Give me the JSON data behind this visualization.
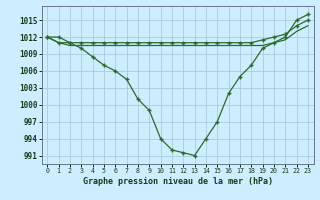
{
  "title": "Graphe pression niveau de la mer (hPa)",
  "background_color": "#cceeff",
  "grid_color": "#aaccdd",
  "line_color": "#2d6b2d",
  "x_values": [
    0,
    1,
    2,
    3,
    4,
    5,
    6,
    7,
    8,
    9,
    10,
    11,
    12,
    13,
    14,
    15,
    16,
    17,
    18,
    19,
    20,
    21,
    22,
    23
  ],
  "main_line": [
    1012,
    1012,
    1011,
    1010,
    1008.5,
    1007,
    1006,
    1004.5,
    1001,
    999,
    994,
    992,
    991.5,
    991,
    994,
    997,
    1002,
    1005,
    1007,
    1010,
    1011,
    1012,
    1015,
    1016
  ],
  "upper_line": [
    1012,
    1011,
    1011,
    1011,
    1011,
    1011,
    1011,
    1011,
    1011,
    1011,
    1011,
    1011,
    1011,
    1011,
    1011,
    1011,
    1011,
    1011,
    1011,
    1011.5,
    1012,
    1012.5,
    1014,
    1015
  ],
  "mid_line": [
    1012,
    1011,
    1010.5,
    1010.5,
    1010.5,
    1010.5,
    1010.5,
    1010.5,
    1010.5,
    1010.5,
    1010.5,
    1010.5,
    1010.5,
    1010.5,
    1010.5,
    1010.5,
    1010.5,
    1010.5,
    1010.5,
    1010.5,
    1011,
    1011.5,
    1013,
    1014
  ],
  "ylim_min": 989.5,
  "ylim_max": 1017.5,
  "yticks": [
    991,
    994,
    997,
    1000,
    1003,
    1006,
    1009,
    1012,
    1015
  ],
  "xtick_labels": [
    "0",
    "1",
    "2",
    "3",
    "4",
    "5",
    "6",
    "7",
    "8",
    "9",
    "10",
    "11",
    "12",
    "13",
    "14",
    "15",
    "16",
    "17",
    "18",
    "19",
    "20",
    "21",
    "22",
    "23"
  ]
}
